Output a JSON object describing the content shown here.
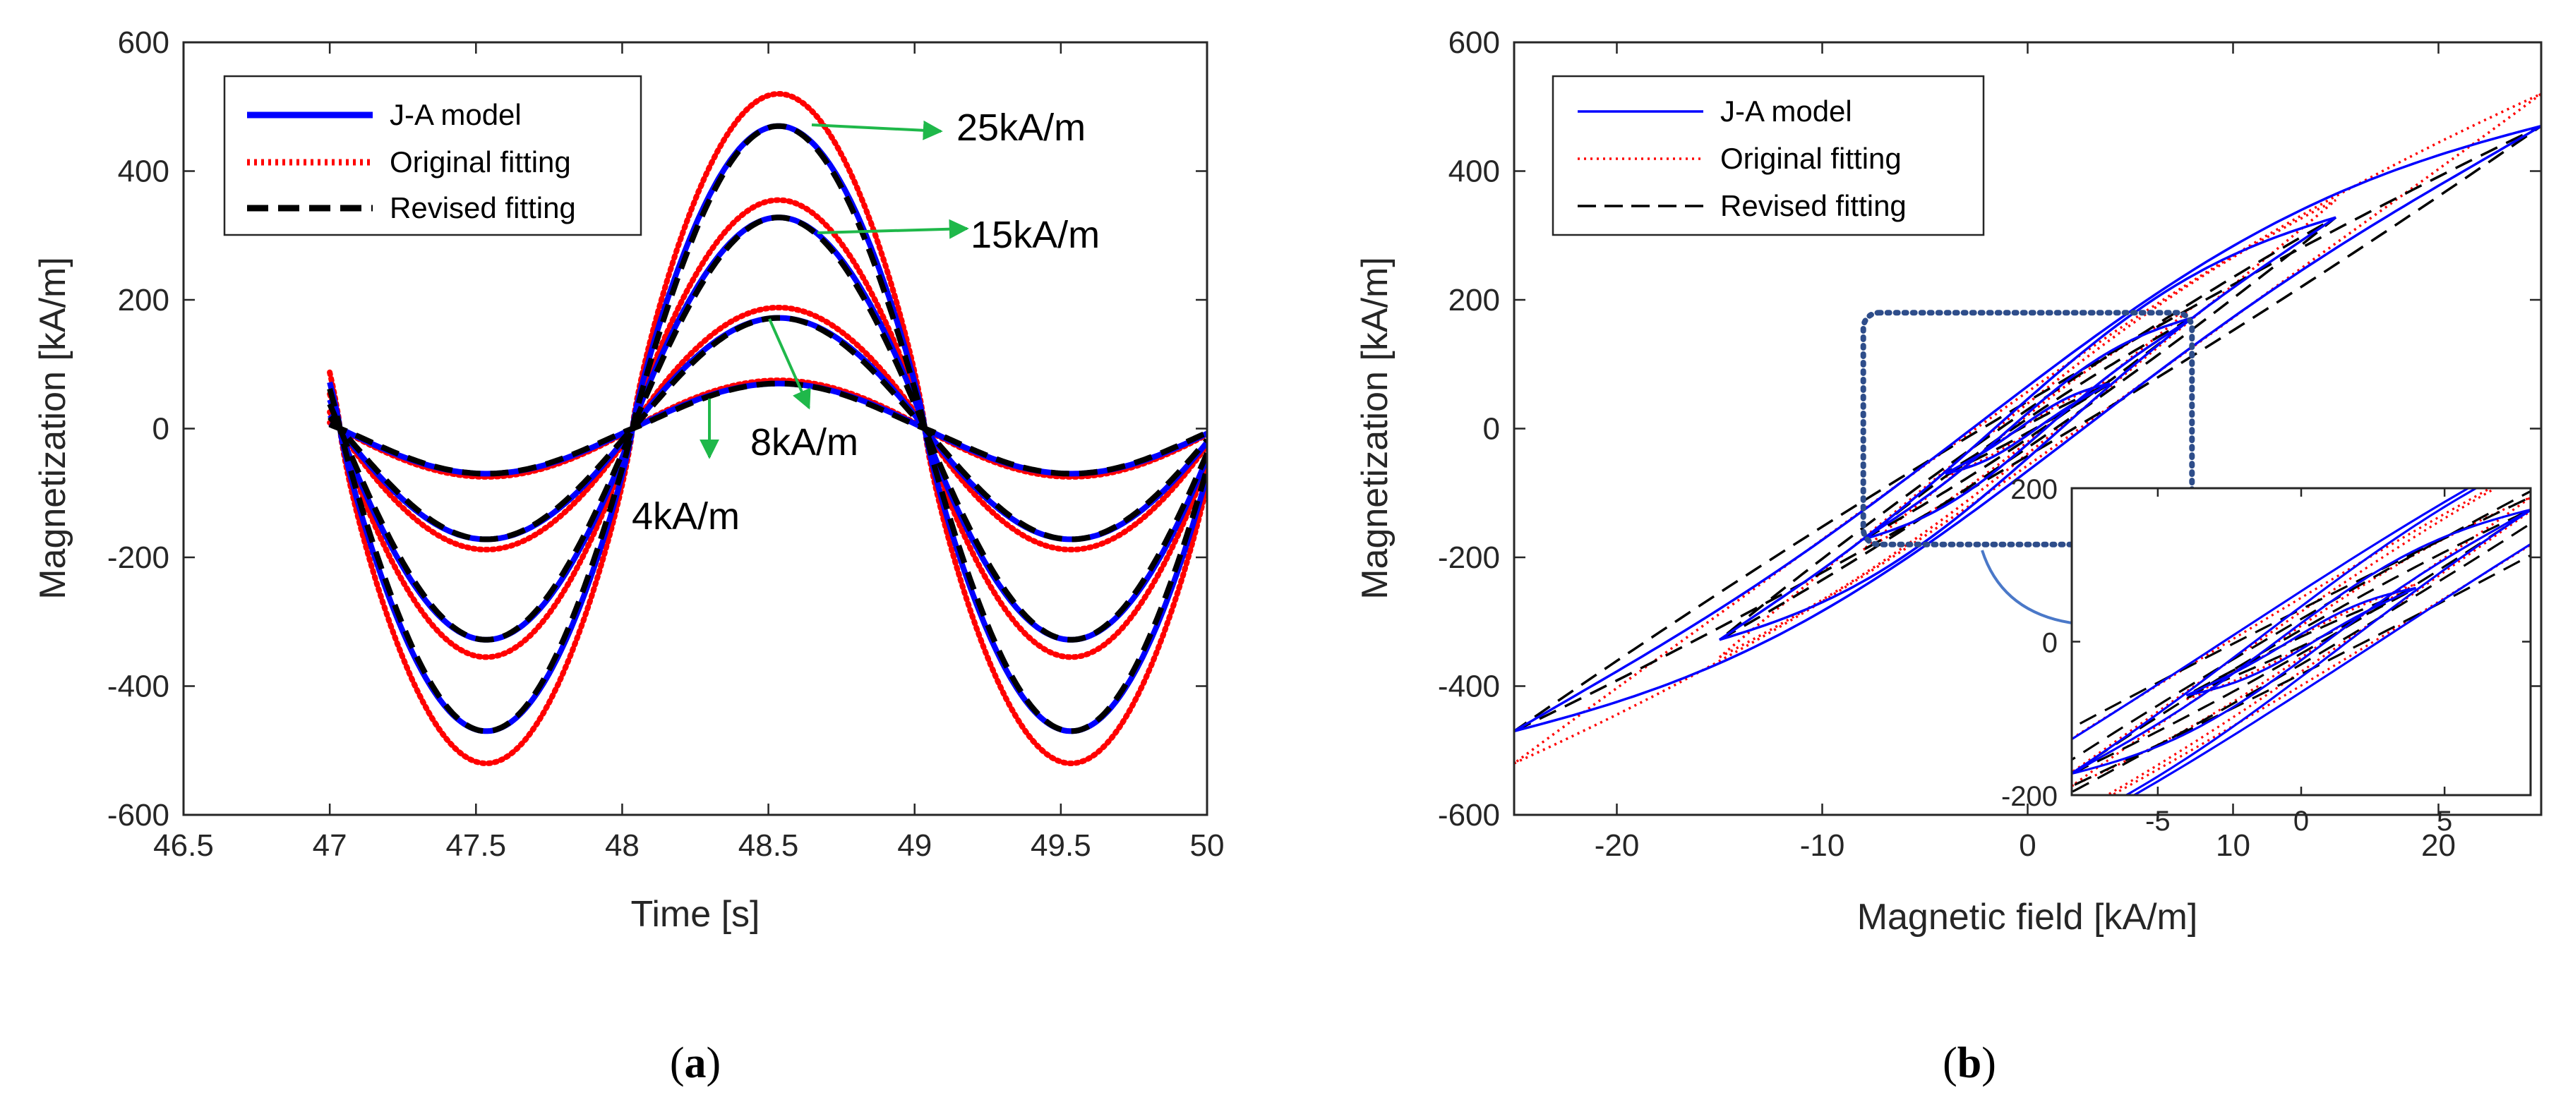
{
  "colors": {
    "ja": "#0000ff",
    "original": "#ff0000",
    "revised": "#000000",
    "arrow": "#1fb84a",
    "zoom_box": "#2e4d8a",
    "zoom_arrow": "#4a78c8"
  },
  "chart_data": [
    {
      "id": "a",
      "type": "line",
      "caption_letter": "a",
      "xlabel": "Time [s]",
      "ylabel": "Magnetization [kA/m]",
      "xlim": [
        46.5,
        50
      ],
      "ylim": [
        -600,
        600
      ],
      "xticks": [
        "46.5",
        "47",
        "47.5",
        "48",
        "48.5",
        "49",
        "49.5",
        "50"
      ],
      "yticks": [
        "-600",
        "-400",
        "-200",
        "0",
        "200",
        "400",
        "600"
      ],
      "legend": {
        "position": "top-left",
        "entries": [
          "J-A model",
          "Original fitting",
          "Revised fitting"
        ]
      },
      "x_range": [
        47,
        50
      ],
      "series": [
        {
          "name": "J-A model",
          "style": "solid",
          "peak_kA_m": [
            470,
            328,
            172,
            70
          ]
        },
        {
          "name": "Original fitting",
          "style": "dotted",
          "peak_kA_m": [
            520,
            355,
            188,
            75
          ]
        },
        {
          "name": "Revised fitting",
          "style": "dashed",
          "peak_kA_m": [
            470,
            328,
            172,
            70
          ]
        }
      ],
      "field_amplitudes": [
        {
          "label": "25kA/m",
          "field": 25
        },
        {
          "label": "15kA/m",
          "field": 15
        },
        {
          "label": "8kA/m",
          "field": 8
        },
        {
          "label": "4kA/m",
          "field": 4
        }
      ]
    },
    {
      "id": "b",
      "type": "line",
      "caption_letter": "b",
      "xlabel": "Magnetic field [kA/m]",
      "ylabel": "Magnetization [kA/m]",
      "xlim": [
        -25,
        25
      ],
      "ylim": [
        -600,
        600
      ],
      "xticks": [
        "-20",
        "-10",
        "0",
        "10",
        "20"
      ],
      "yticks": [
        "-600",
        "-400",
        "-200",
        "0",
        "200",
        "400",
        "600"
      ],
      "legend": {
        "position": "top-left",
        "entries": [
          "J-A model",
          "Original fitting",
          "Revised fitting"
        ]
      },
      "loops": [
        {
          "Hmax": 25,
          "Mmax_ja": 470,
          "Mmax_orig": 520,
          "Mmax_rev": 470
        },
        {
          "Hmax": 15,
          "Mmax_ja": 328,
          "Mmax_orig": 355,
          "Mmax_rev": 328
        },
        {
          "Hmax": 8,
          "Mmax_ja": 172,
          "Mmax_orig": 188,
          "Mmax_rev": 172
        },
        {
          "Hmax": 4,
          "Mmax_ja": 70,
          "Mmax_orig": 75,
          "Mmax_rev": 70
        }
      ],
      "inset": {
        "xlim": [
          -8,
          8
        ],
        "ylim": [
          -200,
          200
        ],
        "xticks": [
          "-5",
          "0",
          "5"
        ],
        "yticks": [
          "-200",
          "0",
          "200"
        ],
        "zoom_region": {
          "x": [
            -8,
            8
          ],
          "y": [
            -180,
            180
          ]
        }
      }
    }
  ]
}
